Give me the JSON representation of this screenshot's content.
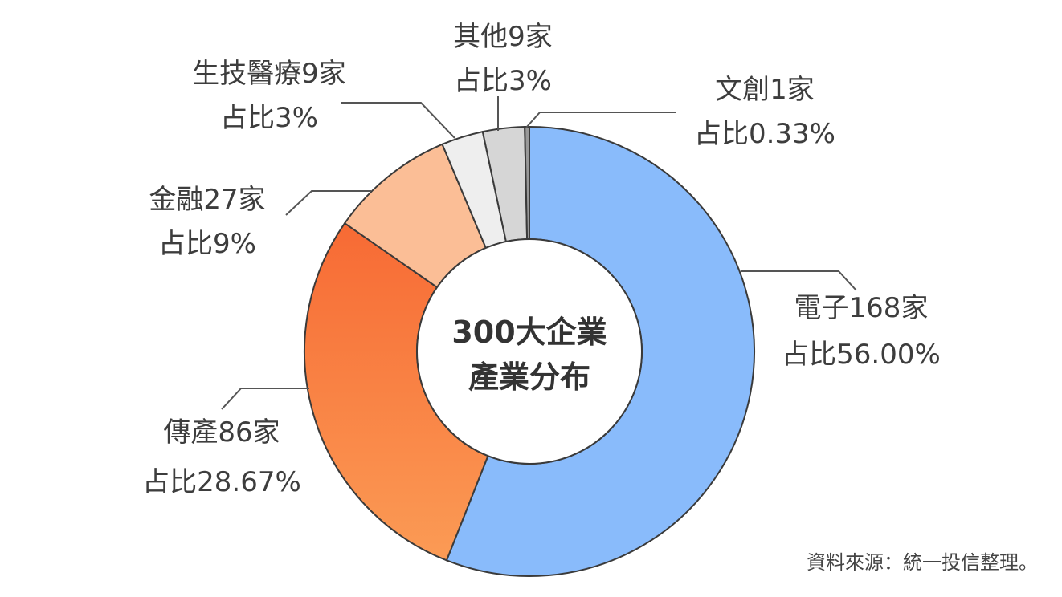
{
  "chart_data": {
    "type": "pie",
    "title": "300大企業產業分布",
    "center_label": [
      "300大企業",
      "產業分布"
    ],
    "source": "資料來源：統一投信整理。",
    "slices": [
      {
        "name": "電子168家",
        "share_label": "占比56.00%",
        "value": 56.0,
        "color": "#89bbfb"
      },
      {
        "name": "傳產86家",
        "share_label": "占比28.67%",
        "value": 28.67,
        "color": "#f9823f"
      },
      {
        "name": "金融27家",
        "share_label": "占比9%",
        "value": 9.0,
        "color": "#fbbe96"
      },
      {
        "name": "生技醫療9家",
        "share_label": "占比3%",
        "value": 3.0,
        "color": "#eeeeee"
      },
      {
        "name": "其他9家",
        "share_label": "占比3%",
        "value": 3.0,
        "color": "#d6d6d6"
      },
      {
        "name": "文創1家",
        "share_label": "占比0.33%",
        "value": 0.33,
        "color": "#999999"
      }
    ]
  }
}
